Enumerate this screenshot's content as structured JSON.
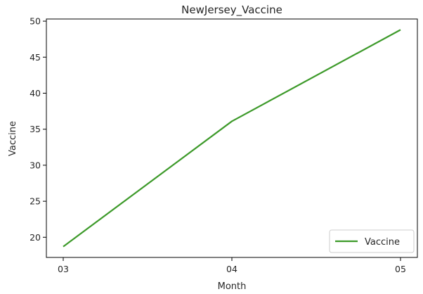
{
  "chart_data": {
    "type": "line",
    "title": "NewJersey_Vaccine",
    "xlabel": "Month",
    "ylabel": "Vaccine",
    "categories": [
      "03",
      "04",
      "05"
    ],
    "series": [
      {
        "name": "Vaccine",
        "color": "#3d9a2a",
        "values": [
          18.7,
          36.1,
          48.8
        ]
      }
    ],
    "ylim": [
      17.2,
      50.3
    ],
    "yticks": [
      20,
      25,
      30,
      35,
      40,
      45,
      50
    ],
    "grid": false,
    "legend_position": "lower right"
  }
}
